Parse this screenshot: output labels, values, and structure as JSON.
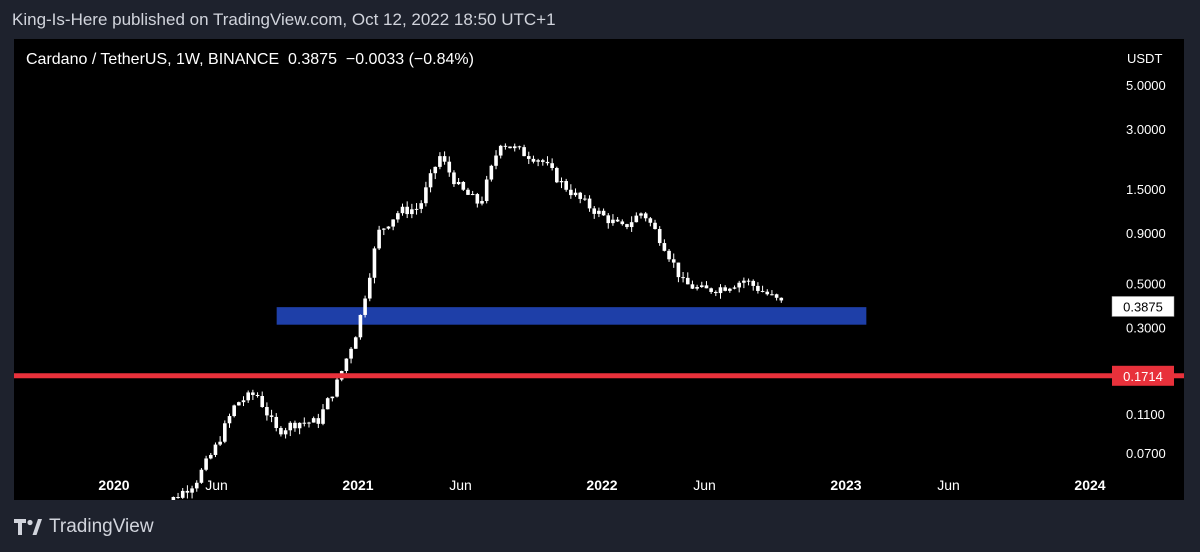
{
  "header": {
    "published_text": "King-Is-Here published on TradingView.com, Oct 12, 2022 18:50 UTC+1"
  },
  "chart_header": {
    "symbol_text": "Cardano / TetherUS, 1W, BINANCE  0.3875  −0.0033 (−0.84%)"
  },
  "footer": {
    "brand": "TradingView",
    "logo_icon": "tradingview-logo-icon"
  },
  "colors": {
    "background": "#1e222d",
    "chart_bg": "#000000",
    "candle": "#ffffff",
    "blue_zone": "#1e3fa8",
    "red_line": "#e8313b",
    "axis_text": "#ffffff",
    "price_badge_bg": "#ffffff",
    "price_badge_text": "#000000"
  },
  "chart_data": {
    "type": "candlestick",
    "title": "Cardano / TetherUS, 1W, BINANCE",
    "y_axis_unit": "USDT",
    "y_scale": "log",
    "y_ticks": [
      "5.0000",
      "3.0000",
      "1.5000",
      "0.9000",
      "0.5000",
      "0.3000",
      "0.1100",
      "0.0700"
    ],
    "x_ticks": [
      "2020",
      "Jun",
      "2021",
      "Jun",
      "2022",
      "Jun",
      "2023",
      "Jun",
      "2024"
    ],
    "last_price_label": "0.3875",
    "horizontal_line": {
      "value": 0.1714,
      "label": "0.1714"
    },
    "zone": {
      "from": 0.31,
      "to": 0.38,
      "start": "2020-09",
      "end": "2023-02"
    },
    "weekly_close_path": [
      [
        "2020-03",
        0.035
      ],
      [
        "2020-05",
        0.05
      ],
      [
        "2020-06",
        0.075
      ],
      [
        "2020-07",
        0.125
      ],
      [
        "2020-08",
        0.14
      ],
      [
        "2020-09",
        0.09
      ],
      [
        "2020-10",
        0.1
      ],
      [
        "2020-11",
        0.1
      ],
      [
        "2020-12",
        0.16
      ],
      [
        "2021-01",
        0.3
      ],
      [
        "2021-02",
        0.9
      ],
      [
        "2021-03",
        1.15
      ],
      [
        "2021-04",
        1.2
      ],
      [
        "2021-05",
        2.2
      ],
      [
        "2021-06",
        1.5
      ],
      [
        "2021-07",
        1.25
      ],
      [
        "2021-08",
        2.6
      ],
      [
        "2021-09",
        2.3
      ],
      [
        "2021-10",
        2.1
      ],
      [
        "2021-11",
        1.6
      ],
      [
        "2021-12",
        1.3
      ],
      [
        "2022-01",
        1.1
      ],
      [
        "2022-02",
        0.95
      ],
      [
        "2022-03",
        1.15
      ],
      [
        "2022-04",
        0.8
      ],
      [
        "2022-05",
        0.5
      ],
      [
        "2022-06",
        0.46
      ],
      [
        "2022-07",
        0.48
      ],
      [
        "2022-08",
        0.52
      ],
      [
        "2022-09",
        0.45
      ],
      [
        "2022-10",
        0.3875
      ]
    ]
  }
}
